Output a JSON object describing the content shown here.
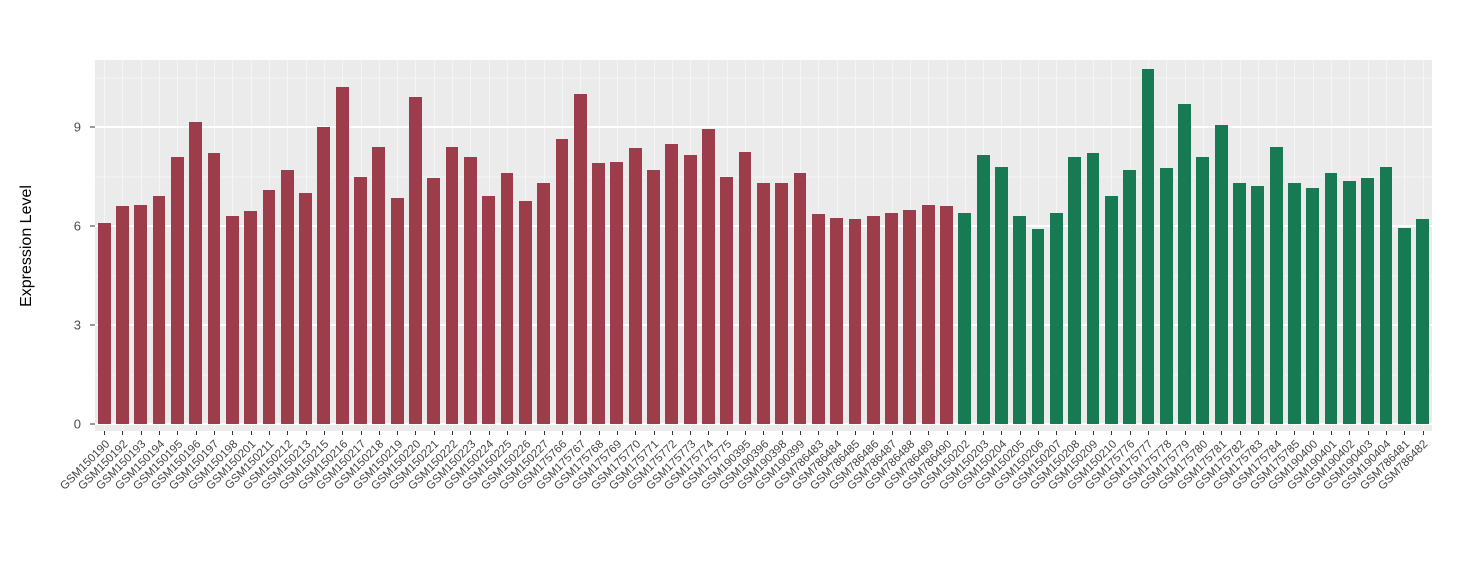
{
  "chart_data": {
    "type": "bar",
    "title": "",
    "xlabel": "",
    "ylabel": "Expression Level",
    "ylim": [
      0,
      11.03
    ],
    "yticks": [
      0,
      3,
      6,
      9
    ],
    "yticks_minor": [
      1.5,
      4.5,
      7.5,
      10.5
    ],
    "grid": true,
    "panel_background": "#ebebeb",
    "grid_color": "#ffffff",
    "legend_position": "none",
    "categories": [
      "GSM150190",
      "GSM150192",
      "GSM150193",
      "GSM150194",
      "GSM150195",
      "GSM150196",
      "GSM150197",
      "GSM150198",
      "GSM150201",
      "GSM150211",
      "GSM150212",
      "GSM150213",
      "GSM150215",
      "GSM150216",
      "GSM150217",
      "GSM150218",
      "GSM150219",
      "GSM150220",
      "GSM150221",
      "GSM150222",
      "GSM150223",
      "GSM150224",
      "GSM150225",
      "GSM150226",
      "GSM150227",
      "GSM175766",
      "GSM175767",
      "GSM175768",
      "GSM175769",
      "GSM175770",
      "GSM175771",
      "GSM175772",
      "GSM175773",
      "GSM175774",
      "GSM175775",
      "GSM190395",
      "GSM190396",
      "GSM190398",
      "GSM190399",
      "GSM786483",
      "GSM786484",
      "GSM786485",
      "GSM786486",
      "GSM786487",
      "GSM786488",
      "GSM786489",
      "GSM786490",
      "GSM150202",
      "GSM150203",
      "GSM150204",
      "GSM150205",
      "GSM150206",
      "GSM150207",
      "GSM150208",
      "GSM150209",
      "GSM150210",
      "GSM175776",
      "GSM175777",
      "GSM175778",
      "GSM175779",
      "GSM175780",
      "GSM175781",
      "GSM175782",
      "GSM175783",
      "GSM175784",
      "GSM175785",
      "GSM190400",
      "GSM190401",
      "GSM190402",
      "GSM190403",
      "GSM190404",
      "GSM786481",
      "GSM786482"
    ],
    "values": [
      6.1,
      6.6,
      6.65,
      6.9,
      8.1,
      9.15,
      8.2,
      6.3,
      6.45,
      7.1,
      7.7,
      7.0,
      9.0,
      10.2,
      7.5,
      8.4,
      6.85,
      9.9,
      7.45,
      8.4,
      8.1,
      6.9,
      7.6,
      6.75,
      7.3,
      8.65,
      10.0,
      7.9,
      7.95,
      8.35,
      7.7,
      8.5,
      8.15,
      8.95,
      7.5,
      8.25,
      7.3,
      7.3,
      7.6,
      6.35,
      6.25,
      6.2,
      6.3,
      6.4,
      6.5,
      6.65,
      6.6,
      6.4,
      8.15,
      7.8,
      6.3,
      5.9,
      6.4,
      8.1,
      8.2,
      6.9,
      7.7,
      10.75,
      7.75,
      9.7,
      8.1,
      9.05,
      7.3,
      7.2,
      8.4,
      7.3,
      7.15,
      7.6,
      7.35,
      7.45,
      7.8,
      5.95,
      6.2
    ],
    "groups": [
      {
        "color": "#9D3D4C",
        "start": 0,
        "count": 47
      },
      {
        "color": "#177A52",
        "start": 47,
        "count": 26
      }
    ]
  }
}
